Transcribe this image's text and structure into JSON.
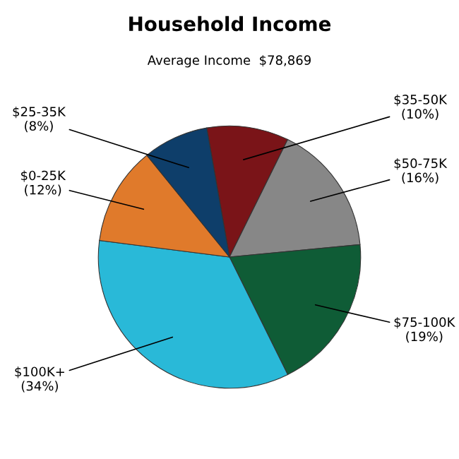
{
  "chart_data": {
    "type": "pie",
    "title": "Household Income",
    "subtitle": "Average Income  $78,869",
    "categories": [
      "$35-50K",
      "$50-75K",
      "$75-100K",
      "$100K+",
      "$0-25K",
      "$25-35K"
    ],
    "values": [
      10,
      16,
      19,
      34,
      12,
      8
    ],
    "value_labels": [
      "(10%)",
      "(16%)",
      "(19%)",
      "(34%)",
      "(12%)",
      "(8%)"
    ],
    "colors": [
      "#7a1418",
      "#878787",
      "#0f5c36",
      "#29b9d8",
      "#e07a2b",
      "#0e3e6a"
    ],
    "legend": false
  }
}
